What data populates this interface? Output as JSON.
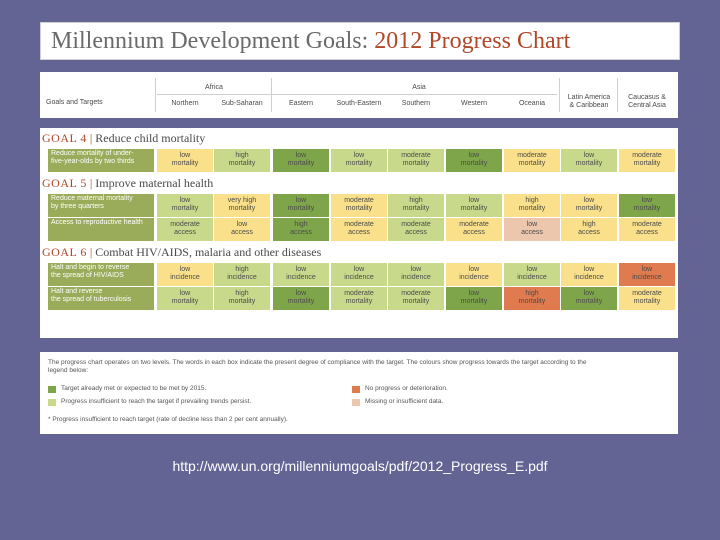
{
  "title": {
    "part1": "Millennium Development Goals:",
    "part2": "2012 Progress Chart"
  },
  "colors": {
    "low": "#c9d98c",
    "high": "#fae08a",
    "met": "#7fa54a",
    "none": "#e07a4f",
    "missing": "#ecc7ad",
    "goal_label_bg": "#9aab5a",
    "title_accent": "#b0482a"
  },
  "header": {
    "goals_label": "Goals and Targets",
    "groups": [
      {
        "name": "Africa"
      },
      {
        "name": "Asia"
      }
    ],
    "columns": [
      "Northern",
      "Sub-Saharan",
      "Eastern",
      "South-Eastern",
      "Southern",
      "Western",
      "Oceania",
      "Latin America\n& Caribbean",
      "Caucasus &\nCentral Asia"
    ]
  },
  "goals": [
    {
      "number": "GOAL 4",
      "title": "Reduce child mortality",
      "rows": [
        {
          "label": "Reduce mortality of under-\nfive-year-olds by two thirds",
          "cells": [
            {
              "t": "low\nmortality",
              "c": "high"
            },
            {
              "t": "high\nmortality",
              "c": "low"
            },
            {
              "t": "low\nmortality",
              "c": "met"
            },
            {
              "t": "low\nmortality",
              "c": "low"
            },
            {
              "t": "moderate\nmortality",
              "c": "low"
            },
            {
              "t": "low\nmortality",
              "c": "met"
            },
            {
              "t": "moderate\nmortality",
              "c": "high"
            },
            {
              "t": "low\nmortality",
              "c": "low"
            },
            {
              "t": "moderate\nmortality",
              "c": "high"
            }
          ]
        }
      ]
    },
    {
      "number": "GOAL 5",
      "title": "Improve maternal health",
      "rows": [
        {
          "label": "Reduce maternal mortality\nby three quarters",
          "cells": [
            {
              "t": "low\nmortality",
              "c": "low"
            },
            {
              "t": "very high\nmortality",
              "c": "high"
            },
            {
              "t": "low\nmortality",
              "c": "met"
            },
            {
              "t": "moderate\nmortality",
              "c": "high"
            },
            {
              "t": "high\nmortality",
              "c": "low"
            },
            {
              "t": "low\nmortality",
              "c": "low"
            },
            {
              "t": "high\nmortality",
              "c": "high"
            },
            {
              "t": "low\nmortality",
              "c": "high"
            },
            {
              "t": "low\nmortality",
              "c": "met"
            }
          ]
        },
        {
          "label": "Access to reproductive health",
          "cells": [
            {
              "t": "moderate\naccess",
              "c": "low"
            },
            {
              "t": "low\naccess",
              "c": "high"
            },
            {
              "t": "high\naccess",
              "c": "met"
            },
            {
              "t": "moderate\naccess",
              "c": "high"
            },
            {
              "t": "moderate\naccess",
              "c": "low"
            },
            {
              "t": "moderate\naccess",
              "c": "high"
            },
            {
              "t": "low\naccess",
              "c": "missing"
            },
            {
              "t": "high\naccess",
              "c": "high"
            },
            {
              "t": "moderate\naccess",
              "c": "high"
            }
          ]
        }
      ]
    },
    {
      "number": "GOAL 6",
      "title": "Combat HIV/AIDS, malaria and other diseases",
      "rows": [
        {
          "label": "Halt and begin to reverse\nthe spread of HIV/AIDS",
          "cells": [
            {
              "t": "low\nincidence",
              "c": "high"
            },
            {
              "t": "high\nincidence",
              "c": "low"
            },
            {
              "t": "low\nincidence",
              "c": "low"
            },
            {
              "t": "low\nincidence",
              "c": "low"
            },
            {
              "t": "low\nincidence",
              "c": "low"
            },
            {
              "t": "low\nincidence",
              "c": "high"
            },
            {
              "t": "low\nincidence",
              "c": "low"
            },
            {
              "t": "low\nincidence",
              "c": "high"
            },
            {
              "t": "low\nincidence",
              "c": "none"
            }
          ]
        },
        {
          "label": "Halt and reverse\nthe spread of tuberculosis",
          "cells": [
            {
              "t": "low\nmortality",
              "c": "low"
            },
            {
              "t": "high\nmortality",
              "c": "low"
            },
            {
              "t": "low\nmortality",
              "c": "met"
            },
            {
              "t": "moderate\nmortality",
              "c": "low"
            },
            {
              "t": "moderate\nmortality",
              "c": "low"
            },
            {
              "t": "low\nmortality",
              "c": "met"
            },
            {
              "t": "high\nmortality",
              "c": "none"
            },
            {
              "t": "low\nmortality",
              "c": "met"
            },
            {
              "t": "moderate\nmortality",
              "c": "high"
            }
          ]
        }
      ]
    }
  ],
  "legend": {
    "intro": "The progress chart operates on two levels. The words in each box indicate the present degree of compliance with the target. The colours show progress towards the target according to the\nlegend below:",
    "items": [
      {
        "c": "met",
        "text": "Target already met or expected to be met by 2015."
      },
      {
        "c": "low",
        "text": "Progress insufficient to reach the target if prevailing trends persist."
      },
      {
        "c": "none",
        "text": "No progress or deterioration."
      },
      {
        "c": "missing",
        "text": "Missing or insufficient data."
      }
    ],
    "footnote": "* Progress insufficient to reach target (rate of decline less than 2 per cent annually)."
  },
  "url": "http://www.un.org/millenniumgoals/pdf/2012_Progress_E.pdf"
}
